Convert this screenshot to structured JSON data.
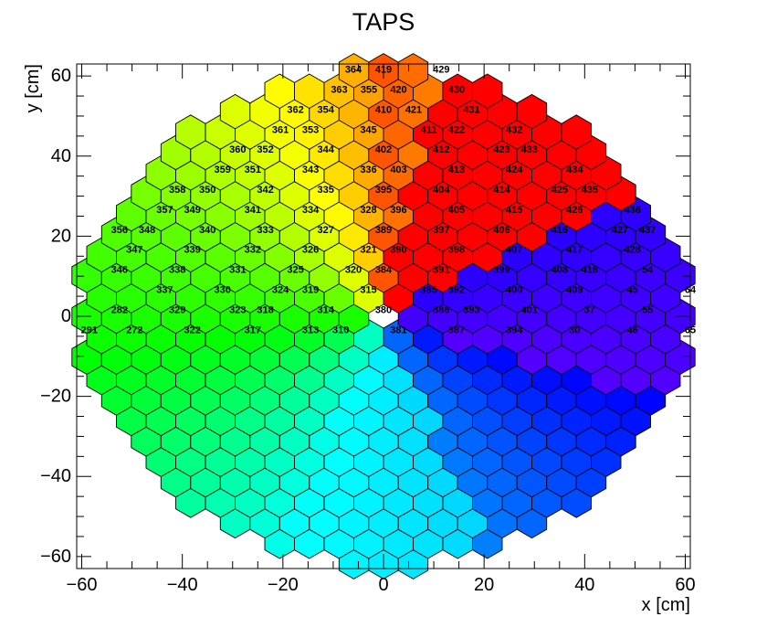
{
  "chart_data": {
    "type": "heatmap",
    "title": "TAPS",
    "xlabel": "x [cm]",
    "ylabel": "y [cm]",
    "xlim": [
      -61,
      61
    ],
    "ylim": [
      -63,
      63
    ],
    "xticks": [
      -60,
      -40,
      -20,
      0,
      20,
      40,
      60
    ],
    "yticks": [
      -60,
      -40,
      -20,
      0,
      20,
      40,
      60
    ],
    "x_tick_labels": [
      "−60",
      "−40",
      "−20",
      "0",
      "20",
      "40",
      "60"
    ],
    "y_tick_labels": [
      "−60",
      "−40",
      "−20",
      "0",
      "20",
      "40",
      "60"
    ],
    "grid": false,
    "hex_pitch_cm": 5.9,
    "labeled_cells": [
      {
        "id": "364",
        "x": -6,
        "y": 61.5
      },
      {
        "id": "419",
        "x": 0,
        "y": 61.5
      },
      {
        "id": "429",
        "x": 11.5,
        "y": 61.5
      },
      {
        "id": "363",
        "x": -8.8,
        "y": 56.5
      },
      {
        "id": "355",
        "x": -2.9,
        "y": 56.5
      },
      {
        "id": "420",
        "x": 3,
        "y": 56.5
      },
      {
        "id": "430",
        "x": 14.5,
        "y": 56.5
      },
      {
        "id": "362",
        "x": -17.5,
        "y": 51.5
      },
      {
        "id": "354",
        "x": -11.5,
        "y": 51.5
      },
      {
        "id": "410",
        "x": 0,
        "y": 51.5
      },
      {
        "id": "421",
        "x": 6,
        "y": 51.5
      },
      {
        "id": "431",
        "x": 17.5,
        "y": 51.5
      },
      {
        "id": "361",
        "x": -20.5,
        "y": 46.5
      },
      {
        "id": "353",
        "x": -14.5,
        "y": 46.5
      },
      {
        "id": "345",
        "x": -3,
        "y": 46.5
      },
      {
        "id": "411",
        "x": 9,
        "y": 46.5
      },
      {
        "id": "422",
        "x": 14.5,
        "y": 46.5
      },
      {
        "id": "432",
        "x": 26,
        "y": 46.5
      },
      {
        "id": "360",
        "x": -29,
        "y": 41.5
      },
      {
        "id": "352",
        "x": -23.5,
        "y": 41.5
      },
      {
        "id": "344",
        "x": -11.5,
        "y": 41.5
      },
      {
        "id": "402",
        "x": 0,
        "y": 41.5
      },
      {
        "id": "412",
        "x": 11.5,
        "y": 41.5
      },
      {
        "id": "423",
        "x": 23.5,
        "y": 41.5
      },
      {
        "id": "433",
        "x": 29,
        "y": 41.5
      },
      {
        "id": "359",
        "x": -32,
        "y": 36.5
      },
      {
        "id": "351",
        "x": -26,
        "y": 36.5
      },
      {
        "id": "343",
        "x": -14.5,
        "y": 36.5
      },
      {
        "id": "336",
        "x": -3,
        "y": 36.5
      },
      {
        "id": "403",
        "x": 3,
        "y": 36.5
      },
      {
        "id": "413",
        "x": 14.5,
        "y": 36.5
      },
      {
        "id": "424",
        "x": 26,
        "y": 36.5
      },
      {
        "id": "434",
        "x": 38,
        "y": 36.5
      },
      {
        "id": "358",
        "x": -41,
        "y": 31.5
      },
      {
        "id": "350",
        "x": -35,
        "y": 31.5
      },
      {
        "id": "342",
        "x": -23.5,
        "y": 31.5
      },
      {
        "id": "335",
        "x": -11.5,
        "y": 31.5
      },
      {
        "id": "395",
        "x": 0,
        "y": 31.5
      },
      {
        "id": "404",
        "x": 11.5,
        "y": 31.5
      },
      {
        "id": "414",
        "x": 23.5,
        "y": 31.5
      },
      {
        "id": "425",
        "x": 35,
        "y": 31.5
      },
      {
        "id": "435",
        "x": 41,
        "y": 31.5
      },
      {
        "id": "357",
        "x": -43.5,
        "y": 26.5
      },
      {
        "id": "349",
        "x": -38,
        "y": 26.5
      },
      {
        "id": "341",
        "x": -26,
        "y": 26.5
      },
      {
        "id": "334",
        "x": -14.5,
        "y": 26.5
      },
      {
        "id": "328",
        "x": -3,
        "y": 26.5
      },
      {
        "id": "396",
        "x": 3,
        "y": 26.5
      },
      {
        "id": "405",
        "x": 14.5,
        "y": 26.5
      },
      {
        "id": "415",
        "x": 26,
        "y": 26.5
      },
      {
        "id": "426",
        "x": 38,
        "y": 26.5
      },
      {
        "id": "436",
        "x": 49.5,
        "y": 26.5
      },
      {
        "id": "356",
        "x": -52.5,
        "y": 21.5
      },
      {
        "id": "348",
        "x": -47,
        "y": 21.5
      },
      {
        "id": "340",
        "x": -35,
        "y": 21.5
      },
      {
        "id": "333",
        "x": -23.5,
        "y": 21.5
      },
      {
        "id": "327",
        "x": -11.5,
        "y": 21.5
      },
      {
        "id": "389",
        "x": 0,
        "y": 21.5
      },
      {
        "id": "397",
        "x": 11.5,
        "y": 21.5
      },
      {
        "id": "406",
        "x": 23.5,
        "y": 21.5
      },
      {
        "id": "416",
        "x": 35,
        "y": 21.5
      },
      {
        "id": "427",
        "x": 47,
        "y": 21.5
      },
      {
        "id": "437",
        "x": 52.5,
        "y": 21.5
      },
      {
        "id": "347",
        "x": -49.5,
        "y": 16.5
      },
      {
        "id": "339",
        "x": -38,
        "y": 16.5
      },
      {
        "id": "332",
        "x": -26,
        "y": 16.5
      },
      {
        "id": "326",
        "x": -14.5,
        "y": 16.5
      },
      {
        "id": "321",
        "x": -3,
        "y": 16.5
      },
      {
        "id": "390",
        "x": 3,
        "y": 16.5
      },
      {
        "id": "398",
        "x": 14.5,
        "y": 16.5
      },
      {
        "id": "407",
        "x": 26,
        "y": 16.5
      },
      {
        "id": "417",
        "x": 38,
        "y": 16.5
      },
      {
        "id": "428",
        "x": 49.5,
        "y": 16.5
      },
      {
        "id": "346",
        "x": -52.5,
        "y": 11.5
      },
      {
        "id": "338",
        "x": -41,
        "y": 11.5
      },
      {
        "id": "331",
        "x": -29,
        "y": 11.5
      },
      {
        "id": "325",
        "x": -17.5,
        "y": 11.5
      },
      {
        "id": "320",
        "x": -6,
        "y": 11.5
      },
      {
        "id": "384",
        "x": 0,
        "y": 11.5
      },
      {
        "id": "391",
        "x": 11.5,
        "y": 11.5
      },
      {
        "id": "399",
        "x": 23.5,
        "y": 11.5
      },
      {
        "id": "408",
        "x": 35,
        "y": 11.5
      },
      {
        "id": "418",
        "x": 41,
        "y": 11.5
      },
      {
        "id": "54",
        "x": 52.5,
        "y": 11.5
      },
      {
        "id": "337",
        "x": -43.5,
        "y": 6.5
      },
      {
        "id": "330",
        "x": -32,
        "y": 6.5
      },
      {
        "id": "324",
        "x": -20.5,
        "y": 6.5
      },
      {
        "id": "319",
        "x": -14.5,
        "y": 6.5
      },
      {
        "id": "315",
        "x": -3,
        "y": 6.5
      },
      {
        "id": "385",
        "x": 9,
        "y": 6.5
      },
      {
        "id": "392",
        "x": 14.5,
        "y": 6.5
      },
      {
        "id": "400",
        "x": 26,
        "y": 6.5
      },
      {
        "id": "409",
        "x": 38,
        "y": 6.5
      },
      {
        "id": "45",
        "x": 49.5,
        "y": 6.5
      },
      {
        "id": "64",
        "x": 61,
        "y": 6.5
      },
      {
        "id": "282",
        "x": -52.5,
        "y": 1.5
      },
      {
        "id": "329",
        "x": -41,
        "y": 1.5
      },
      {
        "id": "323",
        "x": -29,
        "y": 1.5
      },
      {
        "id": "318",
        "x": -23.5,
        "y": 1.5
      },
      {
        "id": "314",
        "x": -11.5,
        "y": 1.5
      },
      {
        "id": "380",
        "x": 0,
        "y": 1.5
      },
      {
        "id": "386",
        "x": 11.5,
        "y": 1.5
      },
      {
        "id": "393",
        "x": 17.5,
        "y": 1.5
      },
      {
        "id": "401",
        "x": 29,
        "y": 1.5
      },
      {
        "id": "37",
        "x": 41,
        "y": 1.5
      },
      {
        "id": "55",
        "x": 52.5,
        "y": 1.5
      },
      {
        "id": "291",
        "x": -58.5,
        "y": -3.5
      },
      {
        "id": "272",
        "x": -49.5,
        "y": -3.5
      },
      {
        "id": "322",
        "x": -38,
        "y": -3.5
      },
      {
        "id": "317",
        "x": -26,
        "y": -3.5
      },
      {
        "id": "313",
        "x": -14.5,
        "y": -3.5
      },
      {
        "id": "310",
        "x": -8.5,
        "y": -3.5
      },
      {
        "id": "381",
        "x": 3,
        "y": -3.5
      },
      {
        "id": "387",
        "x": 14.5,
        "y": -3.5
      },
      {
        "id": "394",
        "x": 26,
        "y": -3.5
      },
      {
        "id": "30",
        "x": 38,
        "y": -3.5
      },
      {
        "id": "46",
        "x": 49.5,
        "y": -3.5
      },
      {
        "id": "65",
        "x": 61,
        "y": -3.5
      }
    ]
  }
}
